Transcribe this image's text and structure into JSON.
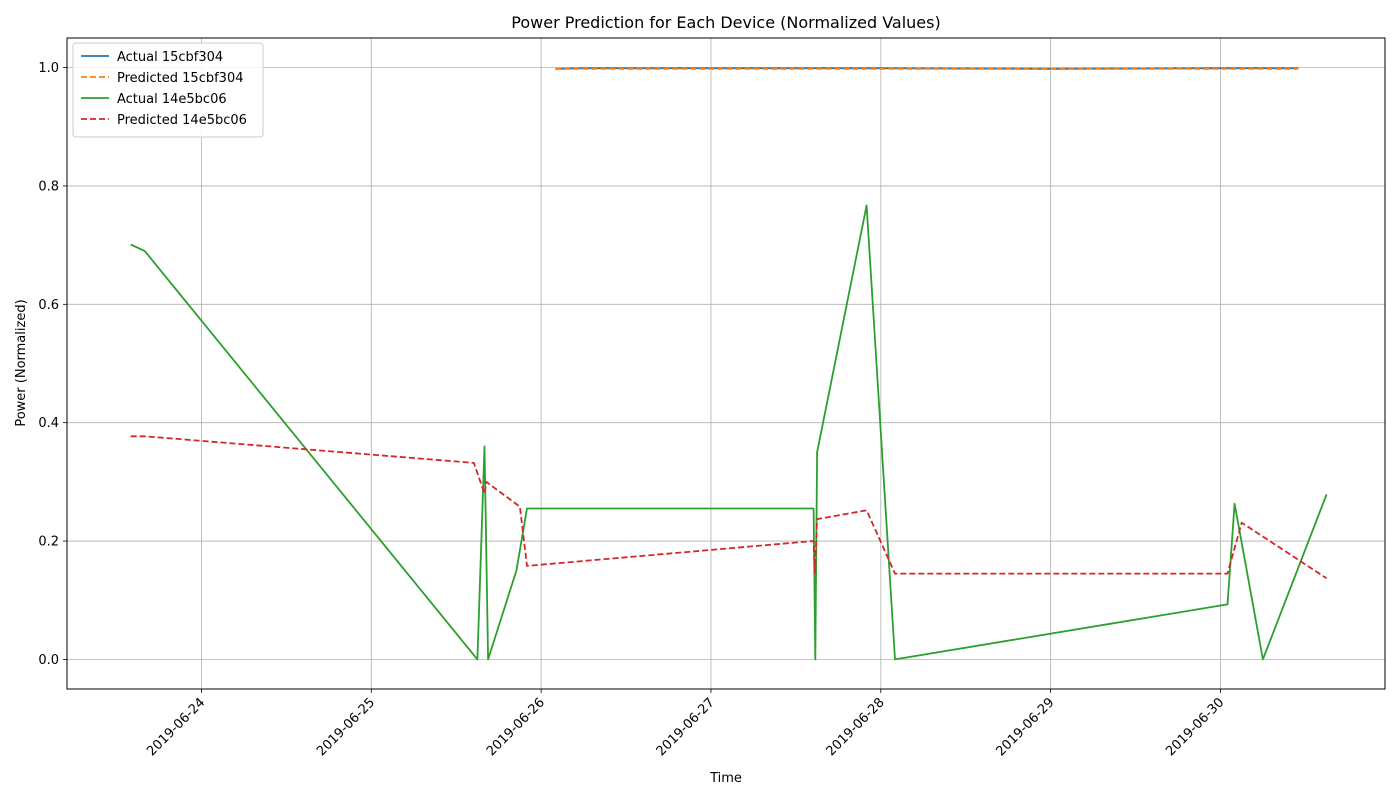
{
  "chart_data": {
    "type": "line",
    "title": "Power Prediction for Each Device (Normalized Values)",
    "xlabel": "Time",
    "ylabel": "Power (Normalized)",
    "xlim": [
      "2019-06-23 05:00",
      "2019-06-30 23:15"
    ],
    "ylim": [
      -0.05,
      1.05
    ],
    "x_ticks": [
      "2019-06-24",
      "2019-06-25",
      "2019-06-26",
      "2019-06-27",
      "2019-06-28",
      "2019-06-29",
      "2019-06-30"
    ],
    "y_ticks": [
      0.0,
      0.2,
      0.4,
      0.6,
      0.8,
      1.0
    ],
    "y_tick_labels": [
      "0.0",
      "0.2",
      "0.4",
      "0.6",
      "0.8",
      "1.0"
    ],
    "grid": true,
    "legend_position": "top-left",
    "series": [
      {
        "name": "Actual 15cbf304",
        "color": "#1f77b4",
        "style": "solid",
        "points": [
          [
            "2019-06-26 02:00",
            0.998
          ],
          [
            "2019-06-26 06:00",
            0.999
          ],
          [
            "2019-06-27 00:00",
            0.999
          ],
          [
            "2019-06-28 00:00",
            0.999
          ],
          [
            "2019-06-29 00:00",
            0.998
          ],
          [
            "2019-06-30 00:00",
            0.999
          ],
          [
            "2019-06-30 11:00",
            0.999
          ]
        ]
      },
      {
        "name": "Predicted 15cbf304",
        "color": "#ff7f0e",
        "style": "dashed",
        "points": [
          [
            "2019-06-26 02:00",
            0.998
          ],
          [
            "2019-06-27 00:00",
            0.998
          ],
          [
            "2019-06-28 00:00",
            0.998
          ],
          [
            "2019-06-29 00:00",
            0.998
          ],
          [
            "2019-06-30 00:00",
            0.998
          ],
          [
            "2019-06-30 11:00",
            0.998
          ]
        ]
      },
      {
        "name": "Actual 14e5bc06",
        "color": "#2ca02c",
        "style": "solid",
        "points": [
          [
            "2019-06-23 14:00",
            0.701
          ],
          [
            "2019-06-23 16:00",
            0.69
          ],
          [
            "2019-06-25 15:00",
            0.0
          ],
          [
            "2019-06-25 16:00",
            0.36
          ],
          [
            "2019-06-25 16:30",
            0.0
          ],
          [
            "2019-06-25 20:30",
            0.15
          ],
          [
            "2019-06-25 22:00",
            0.255
          ],
          [
            "2019-06-27 14:30",
            0.255
          ],
          [
            "2019-06-27 14:45",
            0.0
          ],
          [
            "2019-06-27 15:00",
            0.35
          ],
          [
            "2019-06-27 22:00",
            0.767
          ],
          [
            "2019-06-28 02:00",
            0.0
          ],
          [
            "2019-06-30 01:00",
            0.093
          ],
          [
            "2019-06-30 02:00",
            0.263
          ],
          [
            "2019-06-30 06:00",
            0.0
          ],
          [
            "2019-06-30 15:00",
            0.279
          ]
        ]
      },
      {
        "name": "Predicted 14e5bc06",
        "color": "#d62728",
        "style": "dashed",
        "points": [
          [
            "2019-06-23 14:00",
            0.377
          ],
          [
            "2019-06-23 16:00",
            0.377
          ],
          [
            "2019-06-25 14:30",
            0.332
          ],
          [
            "2019-06-25 16:00",
            0.28
          ],
          [
            "2019-06-25 16:15",
            0.3
          ],
          [
            "2019-06-25 21:00",
            0.258
          ],
          [
            "2019-06-25 22:00",
            0.158
          ],
          [
            "2019-06-27 14:30",
            0.2
          ],
          [
            "2019-06-27 14:40",
            0.145
          ],
          [
            "2019-06-27 15:00",
            0.237
          ],
          [
            "2019-06-27 22:00",
            0.252
          ],
          [
            "2019-06-28 02:00",
            0.145
          ],
          [
            "2019-06-30 01:00",
            0.145
          ],
          [
            "2019-06-30 03:00",
            0.231
          ],
          [
            "2019-06-30 15:00",
            0.137
          ]
        ]
      }
    ]
  }
}
